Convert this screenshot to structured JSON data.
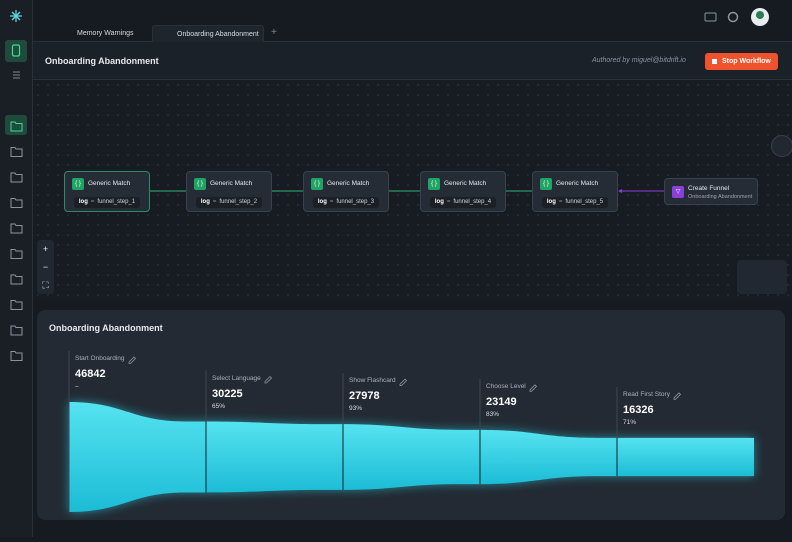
{
  "tabs": [
    "Memory Warnings",
    "Onboarding Abandonment"
  ],
  "header": {
    "title": "Onboarding Abandonment",
    "author": "Authored by miguel@bitdrift.io",
    "button": "Stop Workflow"
  },
  "nodes": [
    {
      "title": "Generic Match",
      "key": "log",
      "op": "=",
      "value": "funnel_step_1"
    },
    {
      "title": "Generic Match",
      "key": "log",
      "op": "=",
      "value": "funnel_step_2"
    },
    {
      "title": "Generic Match",
      "key": "log",
      "op": "=",
      "value": "funnel_step_3"
    },
    {
      "title": "Generic Match",
      "key": "log",
      "op": "=",
      "value": "funnel_step_4"
    },
    {
      "title": "Generic Match",
      "key": "log",
      "op": "=",
      "value": "funnel_step_5"
    },
    {
      "title": "Create Funnel",
      "subtitle": "Onboarding Abandonment"
    }
  ],
  "funnel": {
    "title": "Onboarding Abandonment",
    "steps": [
      {
        "name": "Start Onboarding",
        "count": 46842,
        "rate": "–"
      },
      {
        "name": "Select Language",
        "count": 30225,
        "rate": "65%"
      },
      {
        "name": "Show Flashcard",
        "count": 27978,
        "rate": "93%"
      },
      {
        "name": "Choose Level",
        "count": 23149,
        "rate": "83%"
      },
      {
        "name": "Read First Story",
        "count": 16326,
        "rate": "71%"
      }
    ]
  }
}
